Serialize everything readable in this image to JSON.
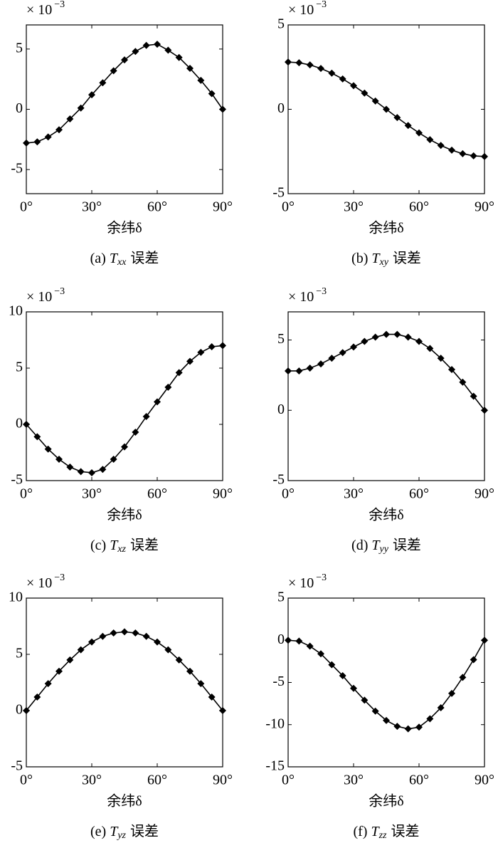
{
  "chart_data": [
    {
      "type": "line",
      "color": "#000000",
      "caption": {
        "label": "(a)",
        "symbol": "T",
        "subscript": "xx",
        "suffix": "误差"
      },
      "xlabel": "余纬δ",
      "y_multiplier": {
        "base": "× 10",
        "exponent": "−3"
      },
      "x": [
        0,
        5,
        10,
        15,
        20,
        25,
        30,
        35,
        40,
        45,
        50,
        55,
        60,
        65,
        70,
        75,
        80,
        85,
        90
      ],
      "values": [
        -2.8,
        -2.7,
        -2.3,
        -1.7,
        -0.8,
        0.1,
        1.2,
        2.2,
        3.2,
        4.1,
        4.8,
        5.3,
        5.4,
        4.9,
        4.3,
        3.4,
        2.4,
        1.3,
        0
      ],
      "xlim": [
        0,
        90
      ],
      "xticks": [
        {
          "value": 0,
          "label": "0°"
        },
        {
          "value": 30,
          "label": "30°"
        },
        {
          "value": 60,
          "label": "60°"
        },
        {
          "value": 90,
          "label": "90°"
        }
      ],
      "ylim": [
        -7,
        7
      ],
      "yticks": [
        -5,
        0,
        5
      ]
    },
    {
      "type": "line",
      "color": "#000000",
      "caption": {
        "label": "(b)",
        "symbol": "T",
        "subscript": "xy",
        "suffix": "误差"
      },
      "xlabel": "余纬δ",
      "y_multiplier": {
        "base": "× 10",
        "exponent": "−3"
      },
      "x": [
        0,
        5,
        10,
        15,
        20,
        25,
        30,
        35,
        40,
        45,
        50,
        55,
        60,
        65,
        70,
        75,
        80,
        85,
        90
      ],
      "values": [
        2.8,
        2.76,
        2.63,
        2.42,
        2.14,
        1.8,
        1.4,
        0.96,
        0.49,
        0,
        -0.49,
        -0.96,
        -1.4,
        -1.8,
        -2.14,
        -2.42,
        -2.63,
        -2.76,
        -2.8
      ],
      "xlim": [
        0,
        90
      ],
      "xticks": [
        {
          "value": 0,
          "label": "0°"
        },
        {
          "value": 30,
          "label": "30°"
        },
        {
          "value": 60,
          "label": "60°"
        },
        {
          "value": 90,
          "label": "90°"
        }
      ],
      "ylim": [
        -5,
        5
      ],
      "yticks": [
        -5,
        0,
        5
      ]
    },
    {
      "type": "line",
      "color": "#000000",
      "caption": {
        "label": "(c)",
        "symbol": "T",
        "subscript": "xz",
        "suffix": "误差"
      },
      "xlabel": "余纬δ",
      "y_multiplier": {
        "base": "× 10",
        "exponent": "−3"
      },
      "x": [
        0,
        5,
        10,
        15,
        20,
        25,
        30,
        35,
        40,
        45,
        50,
        55,
        60,
        65,
        70,
        75,
        80,
        85,
        90
      ],
      "values": [
        0,
        -1.1,
        -2.2,
        -3.1,
        -3.8,
        -4.2,
        -4.3,
        -4.0,
        -3.1,
        -2.0,
        -0.7,
        0.7,
        2.0,
        3.3,
        4.6,
        5.6,
        6.4,
        6.9,
        7.0
      ],
      "xlim": [
        0,
        90
      ],
      "xticks": [
        {
          "value": 0,
          "label": "0°"
        },
        {
          "value": 30,
          "label": "30°"
        },
        {
          "value": 60,
          "label": "60°"
        },
        {
          "value": 90,
          "label": "90°"
        }
      ],
      "ylim": [
        -5,
        10
      ],
      "yticks": [
        -5,
        0,
        5,
        10
      ]
    },
    {
      "type": "line",
      "color": "#000000",
      "caption": {
        "label": "(d)",
        "symbol": "T",
        "subscript": "yy",
        "suffix": "误差"
      },
      "xlabel": "余纬δ",
      "y_multiplier": {
        "base": "× 10",
        "exponent": "−3"
      },
      "x": [
        0,
        5,
        10,
        15,
        20,
        25,
        30,
        35,
        40,
        45,
        50,
        55,
        60,
        65,
        70,
        75,
        80,
        85,
        90
      ],
      "values": [
        2.8,
        2.8,
        3.0,
        3.3,
        3.7,
        4.1,
        4.5,
        4.9,
        5.2,
        5.4,
        5.4,
        5.2,
        4.9,
        4.4,
        3.7,
        2.9,
        2.0,
        1.0,
        0
      ],
      "xlim": [
        0,
        90
      ],
      "xticks": [
        {
          "value": 0,
          "label": "0°"
        },
        {
          "value": 30,
          "label": "30°"
        },
        {
          "value": 60,
          "label": "60°"
        },
        {
          "value": 90,
          "label": "90°"
        }
      ],
      "ylim": [
        -5,
        7
      ],
      "yticks": [
        -5,
        0,
        5
      ]
    },
    {
      "type": "line",
      "color": "#000000",
      "caption": {
        "label": "(e)",
        "symbol": "T",
        "subscript": "yz",
        "suffix": "误差"
      },
      "xlabel": "余纬δ",
      "y_multiplier": {
        "base": "× 10",
        "exponent": "−3"
      },
      "x": [
        0,
        5,
        10,
        15,
        20,
        25,
        30,
        35,
        40,
        45,
        50,
        55,
        60,
        65,
        70,
        75,
        80,
        85,
        90
      ],
      "values": [
        0,
        1.2,
        2.4,
        3.5,
        4.5,
        5.4,
        6.1,
        6.6,
        6.9,
        7.0,
        6.9,
        6.6,
        6.1,
        5.4,
        4.5,
        3.5,
        2.4,
        1.2,
        0
      ],
      "xlim": [
        0,
        90
      ],
      "xticks": [
        {
          "value": 0,
          "label": "0°"
        },
        {
          "value": 30,
          "label": "30°"
        },
        {
          "value": 60,
          "label": "60°"
        },
        {
          "value": 90,
          "label": "90°"
        }
      ],
      "ylim": [
        -5,
        10
      ],
      "yticks": [
        -5,
        0,
        5,
        10
      ]
    },
    {
      "type": "line",
      "color": "#000000",
      "caption": {
        "label": "(f)",
        "symbol": "T",
        "subscript": "zz",
        "suffix": "误差"
      },
      "xlabel": "余纬δ",
      "y_multiplier": {
        "base": "× 10",
        "exponent": "−3"
      },
      "x": [
        0,
        5,
        10,
        15,
        20,
        25,
        30,
        35,
        40,
        45,
        50,
        55,
        60,
        65,
        70,
        75,
        80,
        85,
        90
      ],
      "values": [
        0,
        -0.1,
        -0.7,
        -1.6,
        -2.9,
        -4.2,
        -5.7,
        -7.1,
        -8.4,
        -9.5,
        -10.2,
        -10.5,
        -10.3,
        -9.3,
        -8.0,
        -6.3,
        -4.4,
        -2.3,
        0
      ],
      "xlim": [
        0,
        90
      ],
      "xticks": [
        {
          "value": 0,
          "label": "0°"
        },
        {
          "value": 30,
          "label": "30°"
        },
        {
          "value": 60,
          "label": "60°"
        },
        {
          "value": 90,
          "label": "90°"
        }
      ],
      "ylim": [
        -15,
        5
      ],
      "yticks": [
        -15,
        -10,
        -5,
        0,
        5
      ]
    }
  ]
}
